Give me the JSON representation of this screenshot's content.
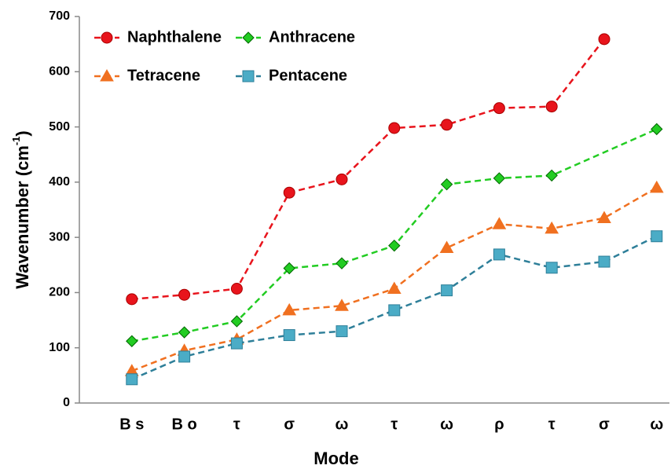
{
  "chart_data": {
    "type": "line",
    "x_label": "Mode",
    "y_label": {
      "main": "Wavenumber (cm",
      "sup": "-1",
      "end": ")"
    },
    "categories": [
      null,
      "B s",
      "B o",
      "τ",
      "σ",
      "ω",
      "τ",
      "ω",
      "ρ",
      "τ",
      "σ",
      "ω"
    ],
    "series": [
      {
        "name": "Naphthalene",
        "color": "#e8141c",
        "marker": "circle",
        "values": [
          null,
          188,
          196,
          207,
          381,
          405,
          498,
          504,
          534,
          537,
          659,
          null
        ]
      },
      {
        "name": "Anthracene",
        "color": "#22cc22",
        "marker": "diamond",
        "values": [
          null,
          112,
          128,
          148,
          244,
          253,
          285,
          396,
          407,
          412,
          null,
          496
        ]
      },
      {
        "name": "Tetracene",
        "color": "#f07020",
        "marker": "triangle",
        "values": [
          null,
          58,
          95,
          115,
          168,
          176,
          207,
          281,
          324,
          316,
          335,
          390
        ]
      },
      {
        "name": "Pentacene",
        "color": "#2e7f99",
        "marker": "square",
        "values": [
          null,
          43,
          84,
          108,
          123,
          130,
          168,
          204,
          269,
          245,
          256,
          302
        ]
      }
    ],
    "span_gaps": true,
    "ylim": [
      0,
      700
    ],
    "yticks": [
      0,
      100,
      200,
      300,
      400,
      500,
      600,
      700
    ],
    "legend": "upper left"
  }
}
